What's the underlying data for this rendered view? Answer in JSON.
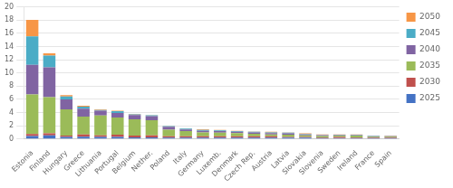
{
  "chart_data": {
    "type": "bar",
    "stacked": true,
    "categories": [
      "Estonia",
      "Finland",
      "Hungary",
      "Greece",
      "Lithuania",
      "Portugal",
      "Belgium",
      "Nether.",
      "Poland",
      "Italy",
      "Germany",
      "Luxemb.",
      "Denmark",
      "Czech Rep.",
      "Austria",
      "Latvia",
      "Slovakia",
      "Slovenia",
      "Sweden",
      "Ireland",
      "France",
      "Spain"
    ],
    "series": [
      {
        "name": "2025",
        "color": "#4472C4",
        "values": [
          0.45,
          0.55,
          0.3,
          0.35,
          0.3,
          0.3,
          0.25,
          0.25,
          0.2,
          0.2,
          0.2,
          0.2,
          0.2,
          0.2,
          0.2,
          0.2,
          0.2,
          0.15,
          0.15,
          0.15,
          0.15,
          0.15
        ]
      },
      {
        "name": "2030",
        "color": "#C0504D",
        "values": [
          0.3,
          0.3,
          0.2,
          0.35,
          0.25,
          0.35,
          0.25,
          0.3,
          0.2,
          0.2,
          0.2,
          0.2,
          0.2,
          0.2,
          0.2,
          0.1,
          0.1,
          0.1,
          0.15,
          0.1,
          0.1,
          0.1
        ]
      },
      {
        "name": "2035",
        "color": "#9BBB59",
        "values": [
          6.0,
          5.5,
          4.0,
          2.7,
          3.0,
          2.6,
          2.5,
          2.3,
          1.0,
          0.8,
          0.6,
          0.55,
          0.5,
          0.4,
          0.3,
          0.35,
          0.25,
          0.2,
          0.2,
          0.25,
          0.1,
          0.1
        ]
      },
      {
        "name": "2040",
        "color": "#8064A2",
        "values": [
          4.5,
          4.5,
          1.5,
          1.2,
          0.75,
          0.7,
          0.65,
          0.6,
          0.45,
          0.25,
          0.25,
          0.25,
          0.2,
          0.2,
          0.2,
          0.2,
          0.15,
          0.12,
          0.1,
          0.1,
          0.08,
          0.05
        ]
      },
      {
        "name": "2045",
        "color": "#4BACC6",
        "values": [
          4.3,
          1.8,
          0.45,
          0.3,
          0.1,
          0.25,
          0.1,
          0.15,
          0.1,
          0.12,
          0.12,
          0.12,
          0.1,
          0.1,
          0.1,
          0.1,
          0.05,
          0.05,
          0.05,
          0.05,
          0.05,
          0.05
        ]
      },
      {
        "name": "2050",
        "color": "#F79646",
        "values": [
          2.5,
          0.35,
          0.2,
          0.15,
          0.1,
          0.1,
          0.05,
          0.05,
          0.05,
          0.05,
          0.1,
          0.05,
          0.05,
          0.05,
          0.1,
          0.05,
          0.1,
          0.08,
          0.05,
          0.05,
          0.05,
          0.05
        ]
      }
    ],
    "ylim": [
      0,
      20
    ],
    "yticks": [
      0,
      2,
      4,
      6,
      8,
      10,
      12,
      14,
      16,
      18,
      20
    ],
    "grid": true,
    "legend": "right"
  }
}
